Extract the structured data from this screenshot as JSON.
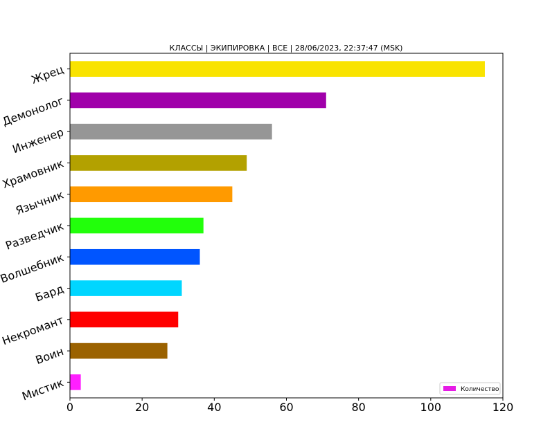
{
  "chart_data": {
    "type": "bar",
    "orientation": "horizontal",
    "title": "КЛАССЫ | ЭКИПИРОВКА | ВСЕ | 28/06/2023, 22:37:47 (MSK)",
    "categories": [
      "Жрец",
      "Демонолог",
      "Инженер",
      "Храмовник",
      "Язычник",
      "Разведчик",
      "Волшебник",
      "Бард",
      "Некромант",
      "Воин",
      "Мистик"
    ],
    "values": [
      115,
      71,
      56,
      49,
      45,
      37,
      36,
      31,
      30,
      27,
      3
    ],
    "colors": [
      "#f9e300",
      "#a000aa",
      "#969696",
      "#b3a100",
      "#ff9a00",
      "#22ff0b",
      "#0055ff",
      "#00d6ff",
      "#ff0000",
      "#9b6200",
      "#ff1fff"
    ],
    "xlim": [
      0,
      120
    ],
    "xticks": [
      0,
      20,
      40,
      60,
      80,
      100,
      120
    ],
    "xlabel": "",
    "ylabel": "",
    "grid": false,
    "legend": {
      "label": "Количество",
      "color": "#e61ce6",
      "position": "bottom-right"
    }
  }
}
